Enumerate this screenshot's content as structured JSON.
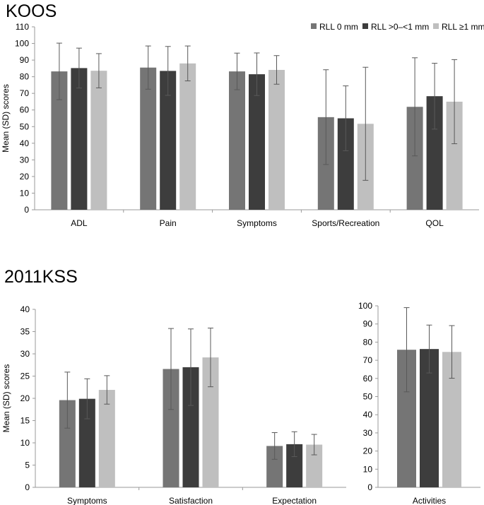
{
  "figure": {
    "koos_title": "KOOS",
    "kss_title": "2011KSS"
  },
  "colors": {
    "series": [
      "#757575",
      "#3d3d3d",
      "#bfbfbf"
    ],
    "axis": "#9a9a9a",
    "errorbar": "#595959"
  },
  "legend": {
    "labels": [
      "RLL 0 mm",
      "RLL >0–<1  mm",
      "RLL ≥1 mm"
    ]
  },
  "chart_data": [
    {
      "id": "koos",
      "type": "bar",
      "title": "KOOS",
      "ylabel": "Mean (SD) scores",
      "xlabel": "",
      "ylim": [
        0,
        110
      ],
      "yticks": [
        0,
        10,
        20,
        30,
        40,
        50,
        60,
        70,
        80,
        90,
        100,
        110
      ],
      "categories": [
        "ADL",
        "Pain",
        "Symptoms",
        "Sports/Recreation",
        "QOL"
      ],
      "legend_position": "top-right",
      "series": [
        {
          "name": "RLL 0 mm",
          "values": [
            83.2,
            85.5,
            83.2,
            55.7,
            61.9
          ],
          "errors": [
            17.0,
            13.0,
            11.0,
            28.5,
            29.5
          ]
        },
        {
          "name": "RLL >0–<1  mm",
          "values": [
            85.2,
            83.5,
            81.5,
            55.0,
            68.3
          ],
          "errors": [
            12.0,
            14.7,
            12.8,
            19.5,
            19.8
          ]
        },
        {
          "name": "RLL ≥1 mm",
          "values": [
            83.6,
            88.0,
            84.1,
            51.7,
            65.0
          ],
          "errors": [
            10.3,
            10.5,
            8.6,
            34.0,
            25.3
          ]
        }
      ]
    },
    {
      "id": "kss_main",
      "type": "bar",
      "title": "2011KSS",
      "ylabel": "Mean (SD) scores",
      "xlabel": "",
      "ylim": [
        0,
        40
      ],
      "yticks": [
        0,
        5,
        10,
        15,
        20,
        25,
        30,
        35,
        40
      ],
      "categories": [
        "Symptoms",
        "Satisfaction",
        "Expectation"
      ],
      "series": [
        {
          "name": "RLL 0 mm",
          "values": [
            19.6,
            26.6,
            9.3
          ],
          "errors": [
            6.3,
            9.1,
            3.0
          ]
        },
        {
          "name": "RLL >0–<1  mm",
          "values": [
            19.9,
            27.0,
            9.7
          ],
          "errors": [
            4.5,
            8.6,
            2.8
          ]
        },
        {
          "name": "RLL ≥1 mm",
          "values": [
            21.9,
            29.2,
            9.6
          ],
          "errors": [
            3.2,
            6.6,
            2.3
          ]
        }
      ]
    },
    {
      "id": "kss_activities",
      "type": "bar",
      "title": "",
      "ylabel": "",
      "xlabel": "",
      "ylim": [
        0,
        100
      ],
      "yticks": [
        0,
        10,
        20,
        30,
        40,
        50,
        60,
        70,
        80,
        90,
        100
      ],
      "categories": [
        "Activities"
      ],
      "series": [
        {
          "name": "RLL 0 mm",
          "values": [
            75.8
          ],
          "errors": [
            23.2
          ]
        },
        {
          "name": "RLL >0–<1  mm",
          "values": [
            76.2
          ],
          "errors": [
            13.2
          ]
        },
        {
          "name": "RLL ≥1 mm",
          "values": [
            74.6
          ],
          "errors": [
            14.5
          ]
        }
      ]
    }
  ]
}
